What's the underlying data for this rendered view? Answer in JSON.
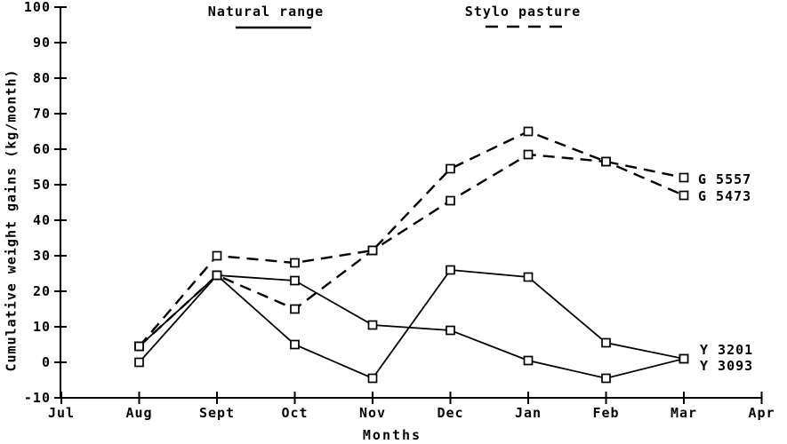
{
  "page": {
    "background": "#ffffff",
    "ink": "#000000"
  },
  "chart_data": {
    "type": "line",
    "title": "",
    "xlabel": "Months",
    "ylabel": "Cumulative weight gains (kg/month)",
    "x_categories": [
      "Jul",
      "Aug",
      "Sept",
      "Oct",
      "Nov",
      "Dec",
      "Jan",
      "Feb",
      "Mar",
      "Apr"
    ],
    "ylim": [
      -10,
      100
    ],
    "yticks": [
      100,
      90,
      80,
      70,
      60,
      50,
      40,
      30,
      20,
      10,
      0,
      -10
    ],
    "grid": false,
    "legend_position": "top",
    "legend": [
      {
        "label": "Natural range",
        "style": "solid"
      },
      {
        "label": "Stylo pasture",
        "style": "dashed"
      }
    ],
    "data_months": [
      "Aug",
      "Sept",
      "Oct",
      "Nov",
      "Dec",
      "Jan",
      "Feb",
      "Mar"
    ],
    "marker": "open-square",
    "series": [
      {
        "name": "G 5557",
        "pasture": "Stylo pasture",
        "style": "dashed",
        "values": [
          4.5,
          30,
          28,
          31.5,
          54.5,
          65,
          56.5,
          52
        ]
      },
      {
        "name": "G 5473",
        "pasture": "Stylo pasture",
        "style": "dashed",
        "values": [
          4.5,
          24.5,
          15,
          31.5,
          45.5,
          58.5,
          56.5,
          47
        ]
      },
      {
        "name": "Y 3201",
        "pasture": "Natural range",
        "style": "solid",
        "values": [
          4.5,
          24.5,
          5,
          -4.5,
          26,
          24,
          5.5,
          1
        ]
      },
      {
        "name": "Y 3093",
        "pasture": "Natural range",
        "style": "solid",
        "values": [
          0,
          24.5,
          23,
          10.5,
          9,
          0.5,
          -4.5,
          1
        ]
      }
    ]
  }
}
